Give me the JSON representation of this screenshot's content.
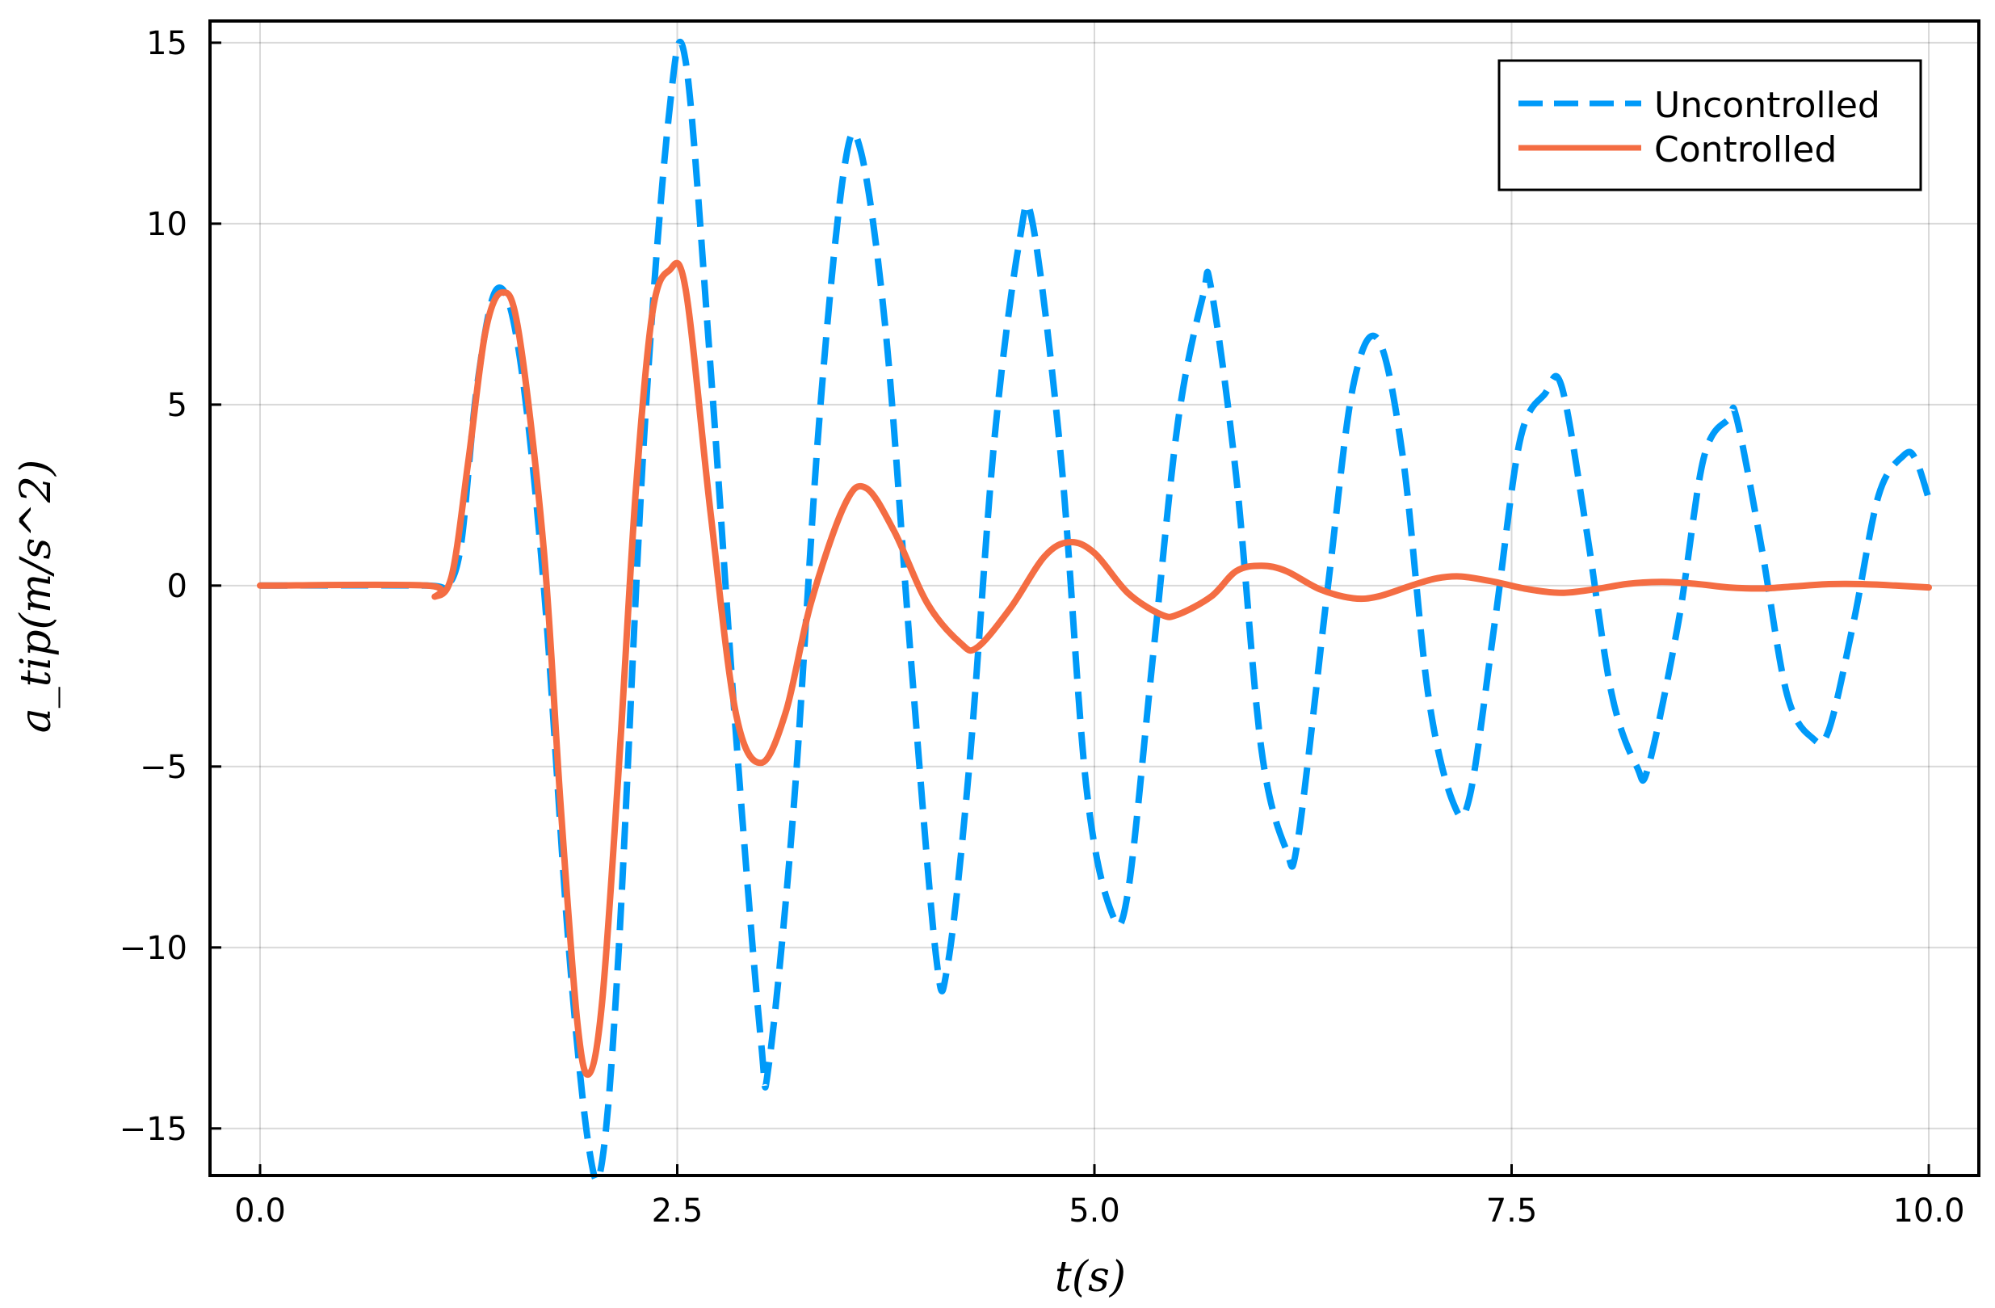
{
  "chart_data": {
    "type": "line",
    "title": "",
    "xlabel": "t(s)",
    "ylabel": "a_tip(m/s^2)",
    "xlim": [
      -0.3,
      10.3
    ],
    "ylim": [
      -16.3,
      15.6
    ],
    "xticks": [
      0.0,
      2.5,
      5.0,
      7.5,
      10.0
    ],
    "xtick_labels": [
      "0.0",
      "2.5",
      "5.0",
      "7.5",
      "10.0"
    ],
    "yticks": [
      -15,
      -10,
      -5,
      0,
      5,
      10,
      15
    ],
    "ytick_labels": [
      "−15",
      "−10",
      "−5",
      "0",
      "5",
      "10",
      "15"
    ],
    "grid": true,
    "legend_position": "top-right",
    "series": [
      {
        "name": "Uncontrolled",
        "color": "#009af9",
        "style": "dashed",
        "points": [
          [
            0.0,
            0.0
          ],
          [
            1.0,
            0.0
          ],
          [
            1.1,
            -0.1
          ],
          [
            1.2,
            1.0
          ],
          [
            1.3,
            5.5
          ],
          [
            1.42,
            8.2
          ],
          [
            1.55,
            6.5
          ],
          [
            1.7,
            0.0
          ],
          [
            1.85,
            -10.0
          ],
          [
            1.97,
            -15.5
          ],
          [
            2.05,
            -15.9
          ],
          [
            2.15,
            -10.0
          ],
          [
            2.3,
            4.0
          ],
          [
            2.45,
            13.0
          ],
          [
            2.55,
            14.5
          ],
          [
            2.7,
            6.0
          ],
          [
            2.85,
            -4.0
          ],
          [
            3.0,
            -12.5
          ],
          [
            3.05,
            -13.2
          ],
          [
            3.2,
            -6.0
          ],
          [
            3.35,
            4.5
          ],
          [
            3.5,
            11.5
          ],
          [
            3.6,
            12.0
          ],
          [
            3.75,
            7.0
          ],
          [
            3.9,
            -2.0
          ],
          [
            4.05,
            -10.2
          ],
          [
            4.12,
            -10.5
          ],
          [
            4.25,
            -5.0
          ],
          [
            4.4,
            4.0
          ],
          [
            4.55,
            9.5
          ],
          [
            4.63,
            10.0
          ],
          [
            4.8,
            3.5
          ],
          [
            4.95,
            -5.5
          ],
          [
            5.1,
            -9.0
          ],
          [
            5.2,
            -8.5
          ],
          [
            5.35,
            -2.0
          ],
          [
            5.5,
            4.5
          ],
          [
            5.65,
            8.0
          ],
          [
            5.7,
            8.2
          ],
          [
            5.85,
            3.0
          ],
          [
            6.0,
            -4.5
          ],
          [
            6.15,
            -7.3
          ],
          [
            6.22,
            -7.0
          ],
          [
            6.4,
            0.0
          ],
          [
            6.55,
            5.5
          ],
          [
            6.7,
            6.8
          ],
          [
            6.85,
            3.5
          ],
          [
            7.0,
            -3.0
          ],
          [
            7.15,
            -6.0
          ],
          [
            7.25,
            -5.8
          ],
          [
            7.4,
            -1.0
          ],
          [
            7.55,
            4.0
          ],
          [
            7.7,
            5.3
          ],
          [
            7.8,
            5.5
          ],
          [
            7.95,
            1.5
          ],
          [
            8.1,
            -3.0
          ],
          [
            8.25,
            -5.0
          ],
          [
            8.32,
            -5.0
          ],
          [
            8.5,
            -1.0
          ],
          [
            8.65,
            3.5
          ],
          [
            8.8,
            4.6
          ],
          [
            8.85,
            4.6
          ],
          [
            9.0,
            1.0
          ],
          [
            9.15,
            -3.0
          ],
          [
            9.3,
            -4.2
          ],
          [
            9.4,
            -4.0
          ],
          [
            9.55,
            -1.0
          ],
          [
            9.7,
            2.5
          ],
          [
            9.85,
            3.6
          ],
          [
            9.92,
            3.5
          ],
          [
            10.0,
            2.4
          ]
        ]
      },
      {
        "name": "Controlled",
        "color": "#f46d43",
        "style": "solid",
        "points": [
          [
            0.0,
            0.0
          ],
          [
            1.0,
            0.0
          ],
          [
            1.05,
            -0.3
          ],
          [
            1.15,
            0.3
          ],
          [
            1.25,
            3.5
          ],
          [
            1.35,
            7.0
          ],
          [
            1.45,
            8.1
          ],
          [
            1.55,
            7.0
          ],
          [
            1.7,
            1.0
          ],
          [
            1.8,
            -6.0
          ],
          [
            1.9,
            -12.0
          ],
          [
            1.97,
            -13.5
          ],
          [
            2.05,
            -11.5
          ],
          [
            2.15,
            -5.0
          ],
          [
            2.25,
            2.5
          ],
          [
            2.35,
            7.5
          ],
          [
            2.45,
            8.7
          ],
          [
            2.55,
            8.2
          ],
          [
            2.7,
            2.0
          ],
          [
            2.85,
            -3.5
          ],
          [
            3.0,
            -4.9
          ],
          [
            3.15,
            -3.5
          ],
          [
            3.3,
            -0.5
          ],
          [
            3.5,
            2.2
          ],
          [
            3.63,
            2.7
          ],
          [
            3.8,
            1.5
          ],
          [
            4.0,
            -0.5
          ],
          [
            4.2,
            -1.6
          ],
          [
            4.3,
            -1.7
          ],
          [
            4.5,
            -0.6
          ],
          [
            4.7,
            0.8
          ],
          [
            4.85,
            1.2
          ],
          [
            5.0,
            0.9
          ],
          [
            5.2,
            -0.2
          ],
          [
            5.4,
            -0.8
          ],
          [
            5.5,
            -0.8
          ],
          [
            5.7,
            -0.3
          ],
          [
            5.85,
            0.4
          ],
          [
            6.0,
            0.55
          ],
          [
            6.15,
            0.4
          ],
          [
            6.35,
            -0.1
          ],
          [
            6.55,
            -0.35
          ],
          [
            6.7,
            -0.3
          ],
          [
            6.9,
            0.0
          ],
          [
            7.05,
            0.2
          ],
          [
            7.2,
            0.25
          ],
          [
            7.4,
            0.1
          ],
          [
            7.6,
            -0.1
          ],
          [
            7.8,
            -0.2
          ],
          [
            8.0,
            -0.1
          ],
          [
            8.2,
            0.05
          ],
          [
            8.4,
            0.1
          ],
          [
            8.6,
            0.05
          ],
          [
            8.8,
            -0.05
          ],
          [
            9.0,
            -0.08
          ],
          [
            9.2,
            -0.02
          ],
          [
            9.4,
            0.04
          ],
          [
            9.6,
            0.04
          ],
          [
            9.8,
            0.0
          ],
          [
            10.0,
            -0.05
          ]
        ]
      }
    ]
  }
}
